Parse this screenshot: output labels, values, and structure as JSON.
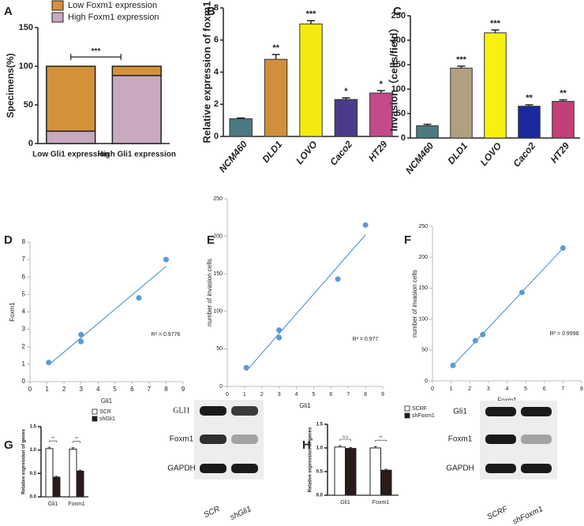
{
  "chart_data": [
    {
      "panel": "A",
      "type": "stacked_bar",
      "ylabel": "Specimens(%)",
      "categories": [
        "Low Gli1 expression",
        "High Gli1 expression"
      ],
      "series": [
        {
          "name": "Low Foxm1 expression",
          "color": "#d4913a",
          "values": [
            84,
            12
          ]
        },
        {
          "name": "High Foxm1 expression",
          "color": "#c8a9c0",
          "values": [
            16,
            88
          ]
        }
      ],
      "ylim": [
        0,
        150
      ],
      "yticks": [
        0,
        50,
        100,
        150
      ],
      "annotation": "***"
    },
    {
      "panel": "B",
      "type": "bar",
      "ylabel": "Relative expression of foxm1",
      "categories": [
        "NCM460",
        "DLD1",
        "LOVO",
        "Caco2",
        "HT29"
      ],
      "values": [
        1.1,
        4.8,
        7.0,
        2.3,
        2.7
      ],
      "errors": [
        0.05,
        0.3,
        0.2,
        0.1,
        0.15
      ],
      "colors": [
        "#4a7a80",
        "#d28f3a",
        "#f5ea10",
        "#4a3a8a",
        "#c44a8a"
      ],
      "significance": [
        null,
        "**",
        "***",
        "*",
        "*"
      ],
      "ylim": [
        0,
        8
      ],
      "yticks": [
        0,
        2,
        4,
        6,
        8
      ]
    },
    {
      "panel": "C",
      "type": "bar",
      "ylabel": "Invasion（cells/field）",
      "categories": [
        "NCM460",
        "DLD1",
        "LOVO",
        "Caco2",
        "HT29"
      ],
      "values": [
        25,
        143,
        215,
        65,
        75
      ],
      "errors": [
        3,
        4,
        6,
        3,
        3
      ],
      "colors": [
        "#4a7a80",
        "#b0a080",
        "#f8f010",
        "#1a2a9a",
        "#c2407a"
      ],
      "significance": [
        null,
        "***",
        "***",
        "**",
        "**"
      ],
      "ylim": [
        0,
        250
      ],
      "yticks": [
        0,
        50,
        100,
        150,
        200,
        250
      ]
    },
    {
      "panel": "D",
      "type": "scatter",
      "color": "#5b9bd5",
      "xlabel": "Gli1",
      "ylabel": "Foxm1",
      "x": [
        1.1,
        3,
        3,
        6.4,
        8
      ],
      "y": [
        1.1,
        2.7,
        2.3,
        4.8,
        7.0
      ],
      "xlim": [
        0,
        9
      ],
      "xticks": [
        0,
        1,
        2,
        3,
        4,
        5,
        6,
        7,
        8,
        9
      ],
      "ylim": [
        0,
        8
      ],
      "yticks": [
        0,
        1,
        2,
        3,
        4,
        5,
        6,
        7,
        8
      ],
      "annotation": "R² = 0.9776"
    },
    {
      "panel": "E",
      "type": "scatter",
      "color": "#5b9bd5",
      "xlabel": "Gli1",
      "ylabel": "number of invasion cells",
      "x": [
        1.1,
        3,
        3,
        6.4,
        8
      ],
      "y": [
        25,
        75,
        65,
        143,
        215
      ],
      "xlim": [
        0,
        9
      ],
      "xticks": [
        0,
        1,
        2,
        3,
        4,
        5,
        6,
        7,
        8,
        9
      ],
      "ylim": [
        0,
        250
      ],
      "yticks": [
        0,
        50,
        100,
        150,
        200,
        250
      ],
      "annotation": "R² = 0.977"
    },
    {
      "panel": "F",
      "type": "scatter",
      "color": "#5b9bd5",
      "xlabel": "Foxm1",
      "ylabel": "number of invasion cells",
      "x": [
        1.1,
        2.3,
        2.7,
        4.8,
        7.0
      ],
      "y": [
        25,
        65,
        75,
        143,
        215
      ],
      "xlim": [
        0,
        8
      ],
      "xticks": [
        0,
        1,
        2,
        3,
        4,
        5,
        6,
        7,
        8
      ],
      "ylim": [
        0,
        250
      ],
      "yticks": [
        0,
        50,
        100,
        150,
        200,
        250
      ],
      "annotation": "R² = 0.9998"
    },
    {
      "panel": "G",
      "type": "grouped_bar",
      "ylabel": "Relative expression of genes",
      "categories": [
        "Gli1",
        "Foxm1"
      ],
      "series": [
        {
          "name": "SCR",
          "color": "#ffffff",
          "values": [
            1.03,
            1.02
          ],
          "errors": [
            0.03,
            0.03
          ]
        },
        {
          "name": "shGli1",
          "color": "#2a1a1a",
          "values": [
            0.42,
            0.55
          ],
          "errors": [
            0.02,
            0.02
          ]
        }
      ],
      "significance": [
        "**",
        "**"
      ],
      "ylim": [
        0,
        1.5
      ],
      "yticks": [
        {
          "value": 0,
          "label": "0.0"
        },
        0.5,
        {
          "value": 1,
          "label": "1.0"
        },
        1.5
      ],
      "blot": {
        "rows": [
          "GLI1",
          "Foxm1",
          "GAPDH"
        ],
        "lanes": [
          "SCR",
          "shGli1"
        ]
      }
    },
    {
      "panel": "H",
      "type": "grouped_bar",
      "ylabel": "Relative expression of genes",
      "categories": [
        "Gli1",
        "Foxm1"
      ],
      "series": [
        {
          "name": "SCRF",
          "color": "#ffffff",
          "values": [
            1.02,
            1.0
          ],
          "errors": [
            0.03,
            0.03
          ]
        },
        {
          "name": "shFoxm1",
          "color": "#2a1a1a",
          "values": [
            0.99,
            0.53
          ],
          "errors": [
            0.02,
            0.02
          ]
        }
      ],
      "significance": [
        "n.s",
        "**"
      ],
      "ylim": [
        0,
        1.5
      ],
      "yticks": [
        {
          "value": 0,
          "label": "0.0"
        },
        0.5,
        {
          "value": 1,
          "label": "1.0"
        },
        1.5
      ],
      "blot": {
        "rows": [
          "Gli1",
          "Foxm1",
          "GAPDH"
        ],
        "lanes": [
          "SCRF",
          "shFoxm1"
        ]
      }
    }
  ]
}
